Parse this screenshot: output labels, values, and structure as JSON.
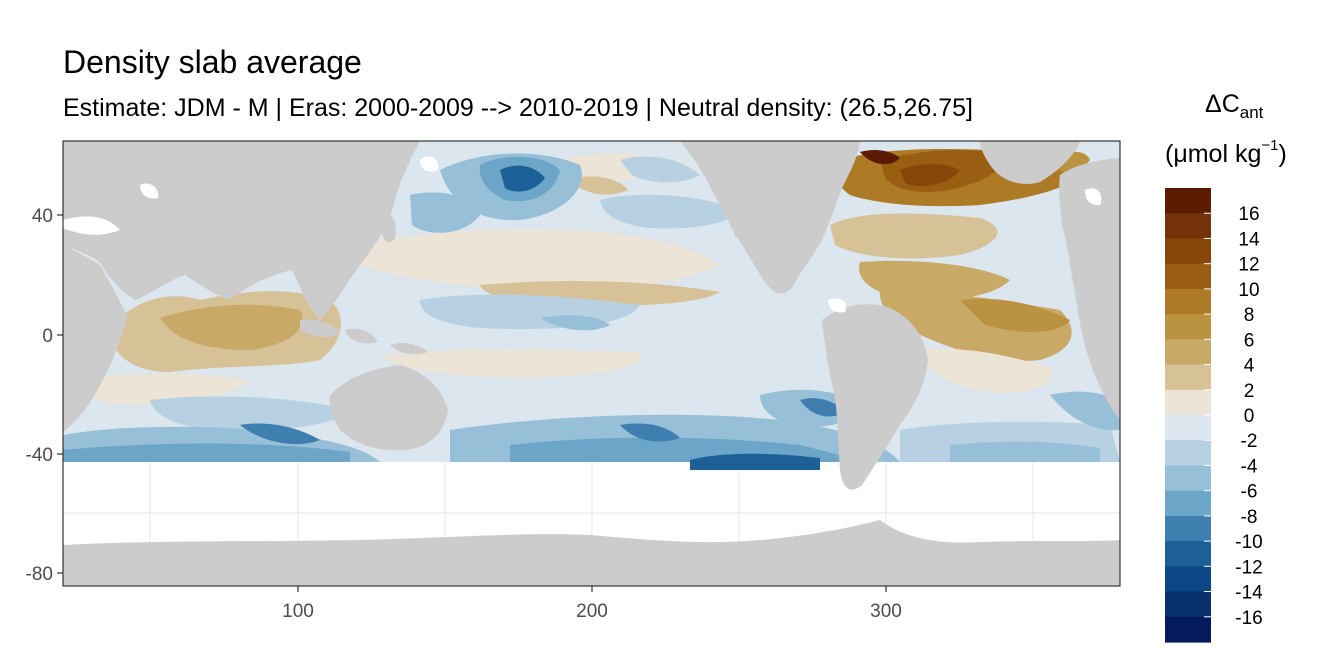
{
  "chart_data": {
    "type": "heatmap",
    "title": "Density slab average",
    "subtitle": "Estimate: JDM - M | Eras: 2000-2009 --> 2010-2019 | Neutral density: (26.5,26.75]",
    "x_ticks": [
      "100",
      "200",
      "300"
    ],
    "x_tick_values": [
      100,
      200,
      300
    ],
    "y_ticks": [
      "40",
      "0",
      "-40",
      "-80"
    ],
    "y_tick_values": [
      40,
      0,
      -40,
      -80
    ],
    "xlim": [
      20,
      380
    ],
    "ylim": [
      -85,
      65
    ],
    "grid": true,
    "legend": {
      "title_main": "ΔC",
      "title_sub": "ant",
      "units_prefix": "(μmol kg",
      "units_sup": "−1",
      "units_suffix": ")",
      "placement": "right",
      "labels": [
        "16",
        "14",
        "12",
        "10",
        "8",
        "6",
        "4",
        "2",
        "0",
        "-2",
        "-4",
        "-6",
        "-8",
        "-10",
        "-12",
        "-14",
        "-16"
      ],
      "colors": [
        "#5c1b03",
        "#74320a",
        "#864709",
        "#9a5e12",
        "#ad7a25",
        "#bb923f",
        "#c9a966",
        "#d7c196",
        "#ebe4d7",
        "#dbe6ee",
        "#b7d1e2",
        "#98bfd8",
        "#6ba6c9",
        "#3f7fb0",
        "#1d6098",
        "#0b4786",
        "#08306b",
        "#031b5b"
      ]
    },
    "colors": {
      "land": "#cccccc",
      "no_data": "#ffffff",
      "grid_line": "#ebebeb"
    }
  }
}
